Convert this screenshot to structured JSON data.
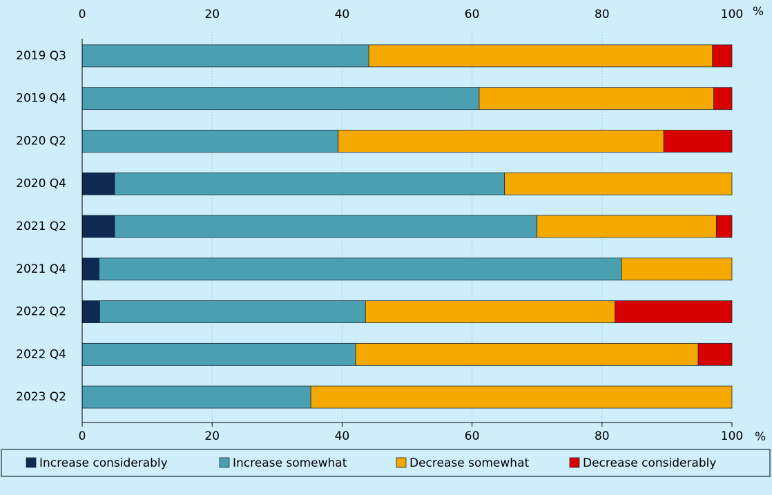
{
  "chart_data": {
    "type": "stacked-bar-horizontal",
    "unit": "%",
    "categories": [
      "2019 Q3",
      "2019 Q4",
      "2020 Q2",
      "2020 Q4",
      "2021 Q2",
      "2021 Q4",
      "2022 Q2",
      "2022 Q4",
      "2023 Q2"
    ],
    "series": [
      {
        "name": "Increase considerably",
        "color": "#0e2a52",
        "values": [
          0,
          0,
          0,
          5.0,
          5.0,
          2.6,
          2.7,
          0,
          0
        ]
      },
      {
        "name": "Increase somewhat",
        "color": "#4aa0b0",
        "values": [
          44.1,
          61.1,
          39.4,
          60.0,
          65.0,
          80.4,
          40.9,
          42.1,
          35.2
        ]
      },
      {
        "name": "Decrease somewhat",
        "color": "#f5a800",
        "values": [
          52.9,
          36.1,
          50.1,
          35.0,
          27.6,
          17.0,
          38.4,
          52.7,
          64.8
        ]
      },
      {
        "name": "Decrease considerably",
        "color": "#d90000",
        "values": [
          3.0,
          2.8,
          10.5,
          0,
          2.4,
          0,
          18.0,
          5.2,
          0
        ]
      }
    ],
    "xlim": [
      0,
      100
    ],
    "xticks": [
      0,
      20,
      40,
      60,
      80,
      100
    ],
    "grid": true
  }
}
